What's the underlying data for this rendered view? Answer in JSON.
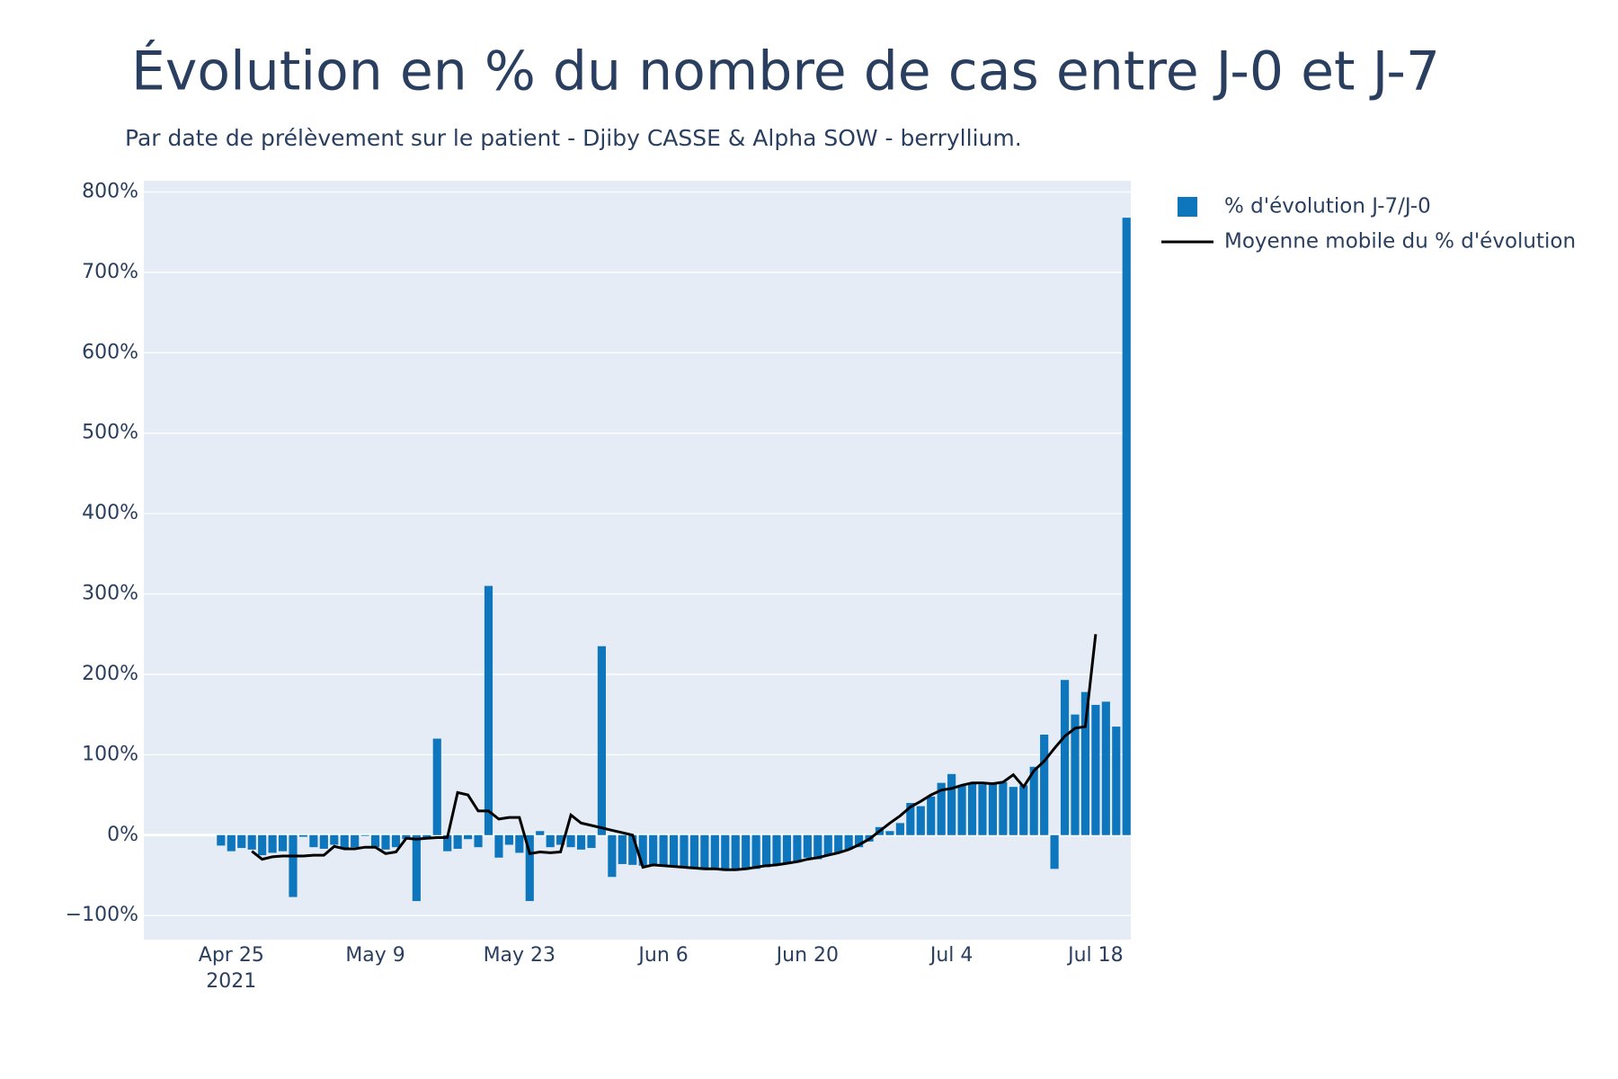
{
  "chart_data": {
    "type": "bar",
    "title": "Évolution en % du nombre de cas entre J-0 et J-7",
    "subtitle": "Par date de prélèvement sur le patient - Djiby CASSE & Alpha SOW - berryllium.",
    "x_start": "2021-04-24",
    "x": [
      "2021-04-24",
      "2021-04-25",
      "2021-04-26",
      "2021-04-27",
      "2021-04-28",
      "2021-04-29",
      "2021-04-30",
      "2021-05-01",
      "2021-05-02",
      "2021-05-03",
      "2021-05-04",
      "2021-05-05",
      "2021-05-06",
      "2021-05-07",
      "2021-05-08",
      "2021-05-09",
      "2021-05-10",
      "2021-05-11",
      "2021-05-12",
      "2021-05-13",
      "2021-05-14",
      "2021-05-15",
      "2021-05-16",
      "2021-05-17",
      "2021-05-18",
      "2021-05-19",
      "2021-05-20",
      "2021-05-21",
      "2021-05-22",
      "2021-05-23",
      "2021-05-24",
      "2021-05-25",
      "2021-05-26",
      "2021-05-27",
      "2021-05-28",
      "2021-05-29",
      "2021-05-30",
      "2021-05-31",
      "2021-06-01",
      "2021-06-02",
      "2021-06-03",
      "2021-06-04",
      "2021-06-05",
      "2021-06-06",
      "2021-06-07",
      "2021-06-08",
      "2021-06-09",
      "2021-06-10",
      "2021-06-11",
      "2021-06-12",
      "2021-06-13",
      "2021-06-14",
      "2021-06-15",
      "2021-06-16",
      "2021-06-17",
      "2021-06-18",
      "2021-06-19",
      "2021-06-20",
      "2021-06-21",
      "2021-06-22",
      "2021-06-23",
      "2021-06-24",
      "2021-06-25",
      "2021-06-26",
      "2021-06-27",
      "2021-06-28",
      "2021-06-29",
      "2021-06-30",
      "2021-07-01",
      "2021-07-02",
      "2021-07-03",
      "2021-07-04",
      "2021-07-05",
      "2021-07-06",
      "2021-07-07",
      "2021-07-08",
      "2021-07-09",
      "2021-07-10",
      "2021-07-11",
      "2021-07-12",
      "2021-07-13",
      "2021-07-14",
      "2021-07-15",
      "2021-07-16",
      "2021-07-17",
      "2021-07-18",
      "2021-07-19",
      "2021-07-20",
      "2021-07-21"
    ],
    "series": [
      {
        "name": "% d'évolution J-7/J-0",
        "type": "bar",
        "color": "#0e76bd",
        "values": [
          -13,
          -20,
          -16,
          -18,
          -25,
          -22,
          -20,
          -77,
          -2,
          -15,
          -17,
          -12,
          -17,
          -15,
          -1,
          -15,
          -18,
          -15,
          -5,
          -82,
          -3,
          120,
          -20,
          -17,
          -5,
          -15,
          310,
          -28,
          -12,
          -22,
          -82,
          5,
          -15,
          -12,
          -15,
          -18,
          -16,
          235,
          -52,
          -36,
          -37,
          -38,
          -38,
          -39,
          -40,
          -41,
          -42,
          -42,
          -43,
          -44,
          -44,
          -43,
          -42,
          -40,
          -38,
          -36,
          -34,
          -28,
          -30,
          -25,
          -22,
          -18,
          -15,
          -8,
          10,
          5,
          15,
          40,
          36,
          48,
          65,
          76,
          62,
          65,
          63,
          65,
          66,
          60,
          62,
          85,
          125,
          -42,
          193,
          150,
          178,
          162,
          166,
          135,
          768
        ]
      },
      {
        "name": "Moyenne mobile du % d'évolution",
        "type": "line",
        "color": "#000000",
        "values": [
          null,
          null,
          null,
          -20,
          -30,
          -27,
          -26,
          -26,
          -26,
          -25,
          -25,
          -14,
          -17,
          -17,
          -15,
          -15,
          -23,
          -21,
          -4,
          -5,
          -4,
          -3,
          -3,
          53,
          50,
          30,
          30,
          20,
          22,
          22,
          -23,
          -21,
          -22,
          -21,
          25,
          15,
          12,
          9,
          6,
          3,
          0,
          -40,
          -37,
          -38,
          -39,
          -40,
          -41,
          -42,
          -42,
          -43,
          -43,
          -42,
          -40,
          -38,
          -37,
          -35,
          -33,
          -30,
          -28,
          -25,
          -22,
          -18,
          -12,
          -5,
          5,
          15,
          24,
          35,
          42,
          50,
          56,
          58,
          62,
          65,
          65,
          64,
          66,
          75,
          60,
          80,
          92,
          108,
          123,
          133,
          135,
          250,
          null,
          null,
          null
        ]
      }
    ],
    "xlim": [
      "2021-04-16T12:00",
      "2021-07-21T10:00"
    ],
    "xticks": [
      {
        "value": "2021-04-25",
        "label": "Apr 25"
      },
      {
        "value": "2021-05-09",
        "label": "May 9"
      },
      {
        "value": "2021-05-23",
        "label": "May 23"
      },
      {
        "value": "2021-06-06",
        "label": "Jun 6"
      },
      {
        "value": "2021-06-20",
        "label": "Jun 20"
      },
      {
        "value": "2021-07-04",
        "label": "Jul 4"
      },
      {
        "value": "2021-07-18",
        "label": "Jul 18"
      }
    ],
    "xtick_year": "2021",
    "ylim": [
      -130,
      814
    ],
    "yticks": [
      {
        "value": -100,
        "label": "−100%"
      },
      {
        "value": 0,
        "label": "0%"
      },
      {
        "value": 100,
        "label": "100%"
      },
      {
        "value": 200,
        "label": "200%"
      },
      {
        "value": 300,
        "label": "300%"
      },
      {
        "value": 400,
        "label": "400%"
      },
      {
        "value": 500,
        "label": "500%"
      },
      {
        "value": 600,
        "label": "600%"
      },
      {
        "value": 700,
        "label": "700%"
      },
      {
        "value": 800,
        "label": "800%"
      }
    ],
    "grid": true,
    "legend": "top-right-outside"
  }
}
